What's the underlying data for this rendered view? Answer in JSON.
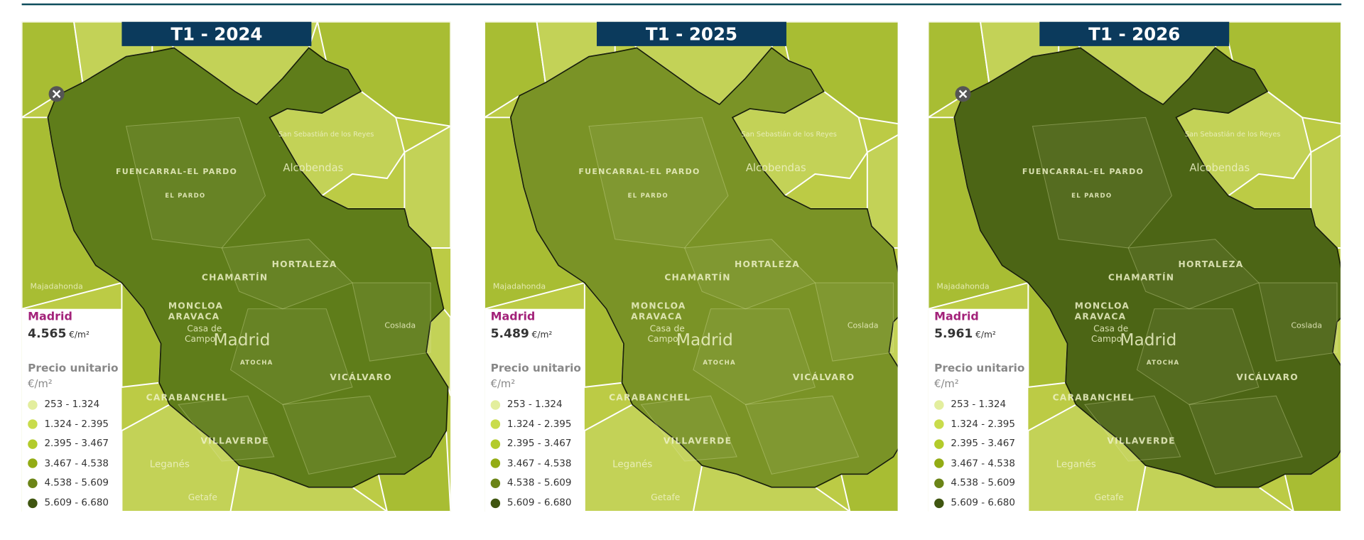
{
  "panels": [
    {
      "title": "T1 - 2024",
      "region": "Madrid",
      "price": "4.565",
      "unit": "€/m²",
      "region_color": "#5f7d1a"
    },
    {
      "title": "T1 - 2025",
      "region": "Madrid",
      "price": "5.489",
      "unit": "€/m²",
      "region_color": "#7a9326"
    },
    {
      "title": "T1 - 2026",
      "region": "Madrid",
      "price": "5.961",
      "unit": "€/m²",
      "region_color": "#4c6515"
    }
  ],
  "legend": {
    "title": "Precio unitario",
    "unit": "€/m²",
    "items": [
      {
        "label": "253 - 1.324",
        "color": "#e3ee9e"
      },
      {
        "label": "1.324 - 2.395",
        "color": "#c9dc4c"
      },
      {
        "label": "2.395 - 3.467",
        "color": "#b3cb2b"
      },
      {
        "label": "3.467 - 4.538",
        "color": "#93ac14"
      },
      {
        "label": "4.538 - 5.609",
        "color": "#6b8417"
      },
      {
        "label": "5.609 - 6.680",
        "color": "#3f5510"
      }
    ]
  },
  "map_labels": [
    "FUENCARRAL-EL PARDO",
    "EL PARDO",
    "CHAMARTÍN",
    "HORTALEZA",
    "Madrid",
    "MONCLOA",
    "ARAVACA",
    "Casa de",
    "Campo",
    "ATOCHA",
    "CARABANCHEL",
    "VICÁLVARO",
    "VILLAVERDE",
    "Leganés",
    "Getafe",
    "Alcobendas",
    "Majadahonda",
    "Coslada",
    "San Sebastián de los Reyes"
  ]
}
